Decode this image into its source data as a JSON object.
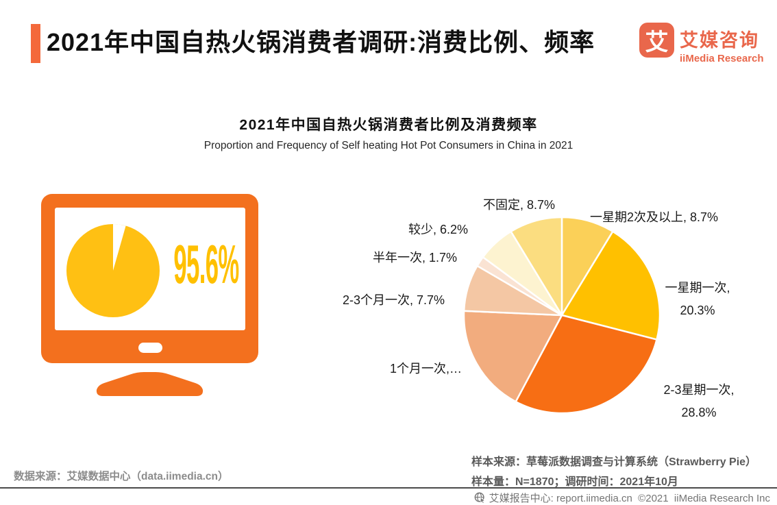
{
  "header": {
    "title": "2021年中国自热火锅消费者调研:消费比例、频率",
    "logo": {
      "glyph": "艾",
      "name_cn": "艾媒咨询",
      "name_en": "iiMedia Research"
    }
  },
  "colors": {
    "accent_bar": "#F4693B",
    "logo_orange": "#E9674B",
    "monitor_orange": "#F3701E",
    "highlight_yellow": "#FFC000",
    "footer_gray": "#757575"
  },
  "chart_data": [
    {
      "type": "pie",
      "description": "consumer proportion shown inside monitor illustration",
      "values": [
        95.6,
        4.4
      ],
      "annotation": "95.6%",
      "colors": [
        "#FFC013",
        "#ffffff"
      ]
    },
    {
      "type": "pie",
      "title": "2021年中国自热火锅消费者比例及消费频率",
      "subtitle": "Proportion and Frequency of Self heating Hot Pot Consumers in China in 2021",
      "unit": "%",
      "start_angle_deg": 0,
      "direction": "clockwise",
      "legend_position": "labels-around-pie",
      "slices": [
        {
          "label": "一星期2次及以上",
          "value": 8.7,
          "lines": [
            "一星期2次及以上, 8.7%"
          ],
          "color": "#FBD058"
        },
        {
          "label": "一星期一次",
          "value": 20.3,
          "lines": [
            "一星期一次,",
            "20.3%"
          ],
          "color": "#FFC000"
        },
        {
          "label": "2-3星期一次",
          "value": 28.8,
          "lines": [
            "2-3星期一次,",
            "28.8%"
          ],
          "color": "#F76E14"
        },
        {
          "label": "1个月一次",
          "value": 17.9,
          "lines": [
            "1个月一次,…"
          ],
          "color": "#F2AC7E"
        },
        {
          "label": "2-3个月一次",
          "value": 7.7,
          "lines": [
            "2-3个月一次, 7.7%"
          ],
          "color": "#F4C7A4"
        },
        {
          "label": "半年一次",
          "value": 1.7,
          "lines": [
            "半年一次, 1.7%"
          ],
          "color": "#FAE3D3"
        },
        {
          "label": "较少",
          "value": 6.2,
          "lines": [
            "较少, 6.2%"
          ],
          "color": "#FDF3D0"
        },
        {
          "label": "不固定",
          "value": 8.7,
          "lines": [
            "不固定, 8.7%"
          ],
          "color": "#FBDD80"
        }
      ]
    }
  ],
  "notes": {
    "data_source": "数据来源：艾媒数据中心（data.iimedia.cn）",
    "sample_source": "样本来源：草莓派数据调查与计算系统（Strawberry Pie）",
    "sample_info": "样本量：N=1870；调研时间：2021年10月"
  },
  "footer": {
    "text": "艾媒报告中心: report.iimedia.cn  ©2021  iiMedia Research Inc"
  }
}
